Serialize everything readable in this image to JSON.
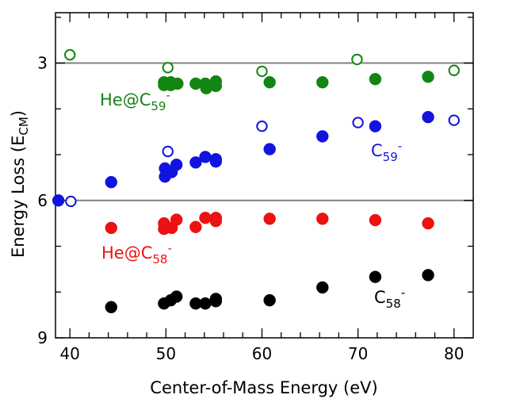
{
  "chart_data": {
    "type": "scatter",
    "xlabel": "Center-of-Mass Energy (eV)",
    "ylabel": {
      "main": "Energy Loss (E",
      "sub": "CM",
      "tail": ")"
    },
    "xlim": [
      38.5,
      82
    ],
    "ylim": [
      9,
      1.9
    ],
    "y_inverted": true,
    "x_ticks": [
      40,
      50,
      60,
      70,
      80
    ],
    "x_tick_labels": [
      "40",
      "50",
      "60",
      "70",
      "80"
    ],
    "y_ticks": [
      3,
      6,
      9
    ],
    "y_tick_labels": [
      "3",
      "6",
      "9"
    ],
    "reference_lines": [
      3,
      6
    ],
    "reference_line_color": "#808080",
    "grid": false,
    "legend": "none",
    "series": [
      {
        "label": {
          "main": "He@C",
          "sub": "59",
          "sup": "-"
        },
        "color": "#138513",
        "points": [
          {
            "x": 40.0,
            "y": 2.82,
            "filled": false
          },
          {
            "x": 50.2,
            "y": 3.1,
            "filled": false
          },
          {
            "x": 49.8,
            "y": 3.42,
            "filled": true
          },
          {
            "x": 49.8,
            "y": 3.48,
            "filled": true
          },
          {
            "x": 50.5,
            "y": 3.42,
            "filled": true
          },
          {
            "x": 50.5,
            "y": 3.48,
            "filled": true
          },
          {
            "x": 51.2,
            "y": 3.45,
            "filled": true
          },
          {
            "x": 53.1,
            "y": 3.45,
            "filled": true
          },
          {
            "x": 54.1,
            "y": 3.45,
            "filled": true
          },
          {
            "x": 54.2,
            "y": 3.55,
            "filled": true
          },
          {
            "x": 55.2,
            "y": 3.4,
            "filled": true
          },
          {
            "x": 55.2,
            "y": 3.5,
            "filled": true
          },
          {
            "x": 60.0,
            "y": 3.18,
            "filled": false
          },
          {
            "x": 60.8,
            "y": 3.42,
            "filled": true
          },
          {
            "x": 66.3,
            "y": 3.42,
            "filled": true
          },
          {
            "x": 69.9,
            "y": 2.92,
            "filled": false
          },
          {
            "x": 71.8,
            "y": 3.35,
            "filled": true
          },
          {
            "x": 77.3,
            "y": 3.3,
            "filled": true
          },
          {
            "x": 80.0,
            "y": 3.16,
            "filled": false
          }
        ]
      },
      {
        "label": {
          "main": "C",
          "sub": "59",
          "sup": "-"
        },
        "color": "#1313e0",
        "points": [
          {
            "x": 38.8,
            "y": 6.0,
            "filled": true
          },
          {
            "x": 40.1,
            "y": 6.02,
            "filled": false
          },
          {
            "x": 44.3,
            "y": 5.6,
            "filled": true
          },
          {
            "x": 49.9,
            "y": 5.3,
            "filled": true
          },
          {
            "x": 49.9,
            "y": 5.48,
            "filled": true
          },
          {
            "x": 50.2,
            "y": 4.93,
            "filled": false
          },
          {
            "x": 50.6,
            "y": 5.38,
            "filled": true
          },
          {
            "x": 51.1,
            "y": 5.22,
            "filled": true
          },
          {
            "x": 53.1,
            "y": 5.17,
            "filled": true
          },
          {
            "x": 54.1,
            "y": 5.05,
            "filled": true
          },
          {
            "x": 55.2,
            "y": 5.1,
            "filled": true
          },
          {
            "x": 55.2,
            "y": 5.15,
            "filled": true
          },
          {
            "x": 60.0,
            "y": 4.38,
            "filled": false
          },
          {
            "x": 60.8,
            "y": 4.88,
            "filled": true
          },
          {
            "x": 66.3,
            "y": 4.6,
            "filled": true
          },
          {
            "x": 70.0,
            "y": 4.3,
            "filled": false
          },
          {
            "x": 71.8,
            "y": 4.38,
            "filled": true
          },
          {
            "x": 77.3,
            "y": 4.18,
            "filled": true
          },
          {
            "x": 80.0,
            "y": 4.25,
            "filled": false
          }
        ]
      },
      {
        "label": {
          "main": "He@C",
          "sub": "58",
          "sup": "-"
        },
        "color": "#ee1111",
        "points": [
          {
            "x": 44.3,
            "y": 6.6,
            "filled": true
          },
          {
            "x": 49.8,
            "y": 6.5,
            "filled": true
          },
          {
            "x": 49.8,
            "y": 6.62,
            "filled": true
          },
          {
            "x": 50.6,
            "y": 6.6,
            "filled": true
          },
          {
            "x": 51.1,
            "y": 6.42,
            "filled": true
          },
          {
            "x": 53.1,
            "y": 6.58,
            "filled": true
          },
          {
            "x": 54.1,
            "y": 6.38,
            "filled": true
          },
          {
            "x": 55.2,
            "y": 6.38,
            "filled": true
          },
          {
            "x": 55.2,
            "y": 6.45,
            "filled": true
          },
          {
            "x": 60.8,
            "y": 6.4,
            "filled": true
          },
          {
            "x": 66.3,
            "y": 6.4,
            "filled": true
          },
          {
            "x": 71.8,
            "y": 6.43,
            "filled": true
          },
          {
            "x": 77.3,
            "y": 6.5,
            "filled": true
          }
        ]
      },
      {
        "label": {
          "main": "C",
          "sub": "58",
          "sup": "-"
        },
        "color": "#000000",
        "points": [
          {
            "x": 44.3,
            "y": 8.33,
            "filled": true
          },
          {
            "x": 49.8,
            "y": 8.25,
            "filled": true
          },
          {
            "x": 50.5,
            "y": 8.18,
            "filled": true
          },
          {
            "x": 51.1,
            "y": 8.1,
            "filled": true
          },
          {
            "x": 53.1,
            "y": 8.25,
            "filled": true
          },
          {
            "x": 54.1,
            "y": 8.25,
            "filled": true
          },
          {
            "x": 55.2,
            "y": 8.15,
            "filled": true
          },
          {
            "x": 55.2,
            "y": 8.2,
            "filled": true
          },
          {
            "x": 60.8,
            "y": 8.18,
            "filled": true
          },
          {
            "x": 66.3,
            "y": 7.9,
            "filled": true
          },
          {
            "x": 71.8,
            "y": 7.67,
            "filled": true
          },
          {
            "x": 77.3,
            "y": 7.63,
            "filled": true
          }
        ]
      }
    ]
  }
}
